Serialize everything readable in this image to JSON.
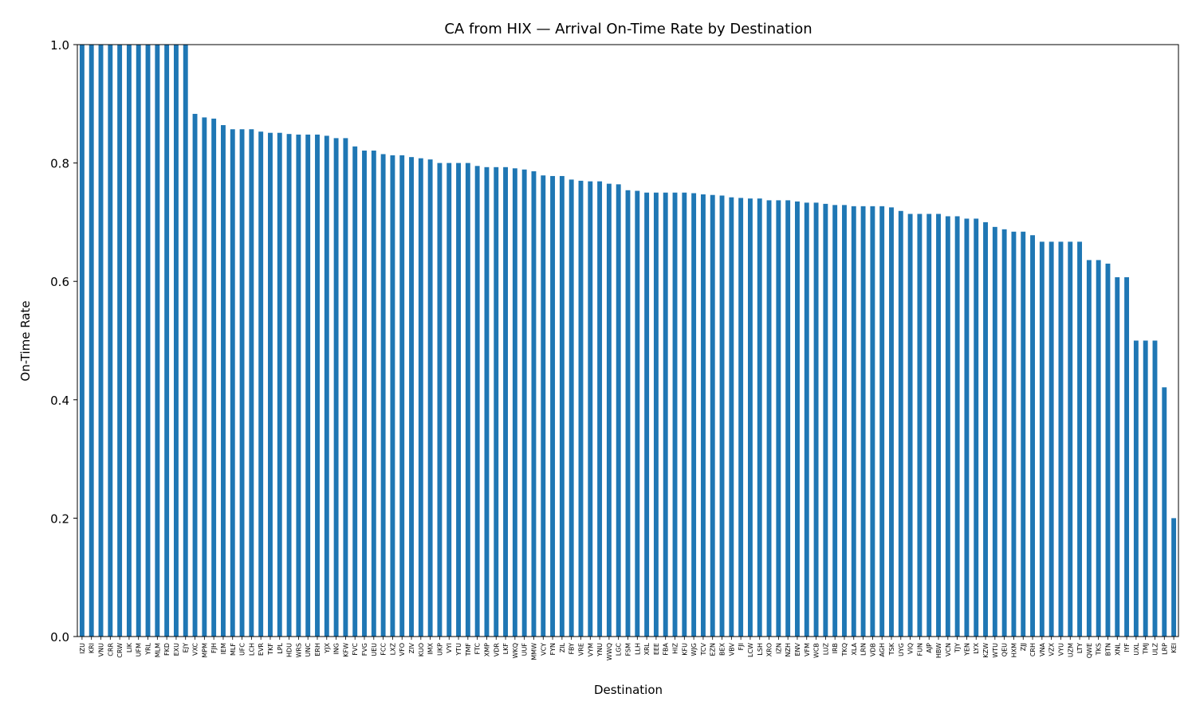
{
  "chart_data": {
    "type": "bar",
    "title": "CA from HIX — Arrival On-Time Rate by Destination",
    "xlabel": "Destination",
    "ylabel": "On-Time Rate",
    "ylim": [
      0,
      1.0
    ],
    "yticks": [
      "0.0",
      "0.2",
      "0.4",
      "0.6",
      "0.8",
      "1.0"
    ],
    "grid": false,
    "bar_color": "#1f77b4",
    "categories": [
      "IZU",
      "KRI",
      "VNU",
      "CRR",
      "CRW",
      "LIK",
      "UFM",
      "YRL",
      "MLM",
      "FKD",
      "EXU",
      "EJY",
      "VXC",
      "MPM",
      "FJH",
      "IEM",
      "MLF",
      "UFC",
      "LCH",
      "EVR",
      "TKF",
      "LPL",
      "HDU",
      "WRS",
      "UNC",
      "ERH",
      "YJX",
      "ING",
      "KFW",
      "FVC",
      "FVG",
      "UEU",
      "FCC",
      "LXZ",
      "VFO",
      "ZIV",
      "KUO",
      "IMX",
      "UKP",
      "VYI",
      "YTU",
      "TMF",
      "FTC",
      "XMP",
      "VDR",
      "LKF",
      "WKQ",
      "UUF",
      "MMW",
      "VCY",
      "FYN",
      "ZIL",
      "FBY",
      "VRE",
      "VYM",
      "YNU",
      "WWQ",
      "LGC",
      "FSM",
      "LLH",
      "XRL",
      "EEE",
      "FBA",
      "HIZ",
      "KFU",
      "WJG",
      "TCV",
      "EZN",
      "BEX",
      "VBV",
      "FJI",
      "LCW",
      "LSH",
      "XRO",
      "IZN",
      "NZH",
      "ENV",
      "VFM",
      "WCB",
      "LUZ",
      "IRB",
      "TKQ",
      "XLA",
      "LRN",
      "VDB",
      "AGH",
      "TSK",
      "UYG",
      "VIQ",
      "FUN",
      "AJP",
      "HBW",
      "VCN",
      "TJY",
      "YEN",
      "LYX",
      "KZW",
      "WTU",
      "QEU",
      "HXM",
      "ZJJ",
      "CRH",
      "VNA",
      "VZX",
      "VYU",
      "UZM",
      "LTY",
      "QWE",
      "TKS",
      "BTN",
      "XNL",
      "IYF",
      "UXL",
      "TMJ",
      "ULZ",
      "LRP",
      "KEI"
    ],
    "values": [
      1.0,
      1.0,
      1.0,
      1.0,
      1.0,
      1.0,
      1.0,
      1.0,
      1.0,
      1.0,
      1.0,
      1.0,
      0.883,
      0.877,
      0.875,
      0.864,
      0.857,
      0.857,
      0.857,
      0.853,
      0.851,
      0.851,
      0.849,
      0.848,
      0.848,
      0.848,
      0.846,
      0.842,
      0.842,
      0.828,
      0.821,
      0.821,
      0.815,
      0.813,
      0.813,
      0.81,
      0.808,
      0.806,
      0.8,
      0.8,
      0.8,
      0.8,
      0.795,
      0.793,
      0.793,
      0.793,
      0.791,
      0.789,
      0.786,
      0.779,
      0.778,
      0.778,
      0.772,
      0.77,
      0.769,
      0.769,
      0.765,
      0.764,
      0.754,
      0.753,
      0.75,
      0.75,
      0.75,
      0.75,
      0.75,
      0.749,
      0.747,
      0.746,
      0.745,
      0.742,
      0.741,
      0.74,
      0.74,
      0.737,
      0.737,
      0.737,
      0.735,
      0.733,
      0.733,
      0.731,
      0.729,
      0.729,
      0.727,
      0.727,
      0.727,
      0.727,
      0.725,
      0.719,
      0.714,
      0.714,
      0.714,
      0.714,
      0.71,
      0.71,
      0.706,
      0.706,
      0.7,
      0.692,
      0.688,
      0.684,
      0.684,
      0.678,
      0.667,
      0.667,
      0.667,
      0.667,
      0.667,
      0.636,
      0.636,
      0.63,
      0.607,
      0.607,
      0.5,
      0.5,
      0.5,
      0.421,
      0.2
    ]
  }
}
